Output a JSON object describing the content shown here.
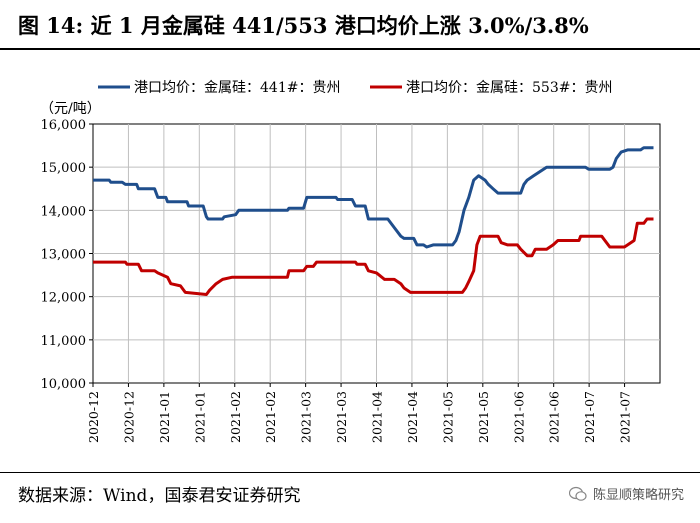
{
  "title": "图 14: 近 1 月金属硅 441/553 港口均价上涨 3.0%/3.8%",
  "source": "数据来源：Wind，国泰君安证券研究",
  "brand": "陈显顺策略研究",
  "colors": {
    "series1": "#1f4e8c",
    "series2": "#c00000"
  },
  "chart_data": {
    "type": "line",
    "unit_label": "（元/吨）",
    "ylim": [
      10000,
      16000
    ],
    "yticks": [
      "10,000",
      "11,000",
      "12,000",
      "13,000",
      "14,000",
      "15,000",
      "16,000"
    ],
    "xticks": [
      "2020-12",
      "2020-12",
      "2021-01",
      "2021-01",
      "2021-02",
      "2021-02",
      "2021-03",
      "2021-03",
      "2021-04",
      "2021-04",
      "2021-05",
      "2021-05",
      "2021-06",
      "2021-06",
      "2021-07",
      "2021-07"
    ],
    "x_range": [
      0,
      17.5
    ],
    "legend_position": "top",
    "grid": true,
    "series": [
      {
        "name": "港口均价：金属硅：441#：贵州",
        "color": "#1f4e8c",
        "points": [
          [
            0,
            14700
          ],
          [
            0.5,
            14700
          ],
          [
            0.55,
            14650
          ],
          [
            0.9,
            14650
          ],
          [
            1.0,
            14600
          ],
          [
            1.35,
            14600
          ],
          [
            1.4,
            14500
          ],
          [
            1.9,
            14500
          ],
          [
            2.0,
            14300
          ],
          [
            2.25,
            14300
          ],
          [
            2.3,
            14200
          ],
          [
            2.9,
            14200
          ],
          [
            2.95,
            14100
          ],
          [
            3.4,
            14100
          ],
          [
            3.5,
            13850
          ],
          [
            3.55,
            13800
          ],
          [
            4.0,
            13800
          ],
          [
            4.05,
            13850
          ],
          [
            4.4,
            13900
          ],
          [
            4.5,
            14000
          ],
          [
            6.0,
            14000
          ],
          [
            6.05,
            14050
          ],
          [
            6.5,
            14050
          ],
          [
            6.6,
            14300
          ],
          [
            7.5,
            14300
          ],
          [
            7.55,
            14250
          ],
          [
            8.0,
            14250
          ],
          [
            8.1,
            14100
          ],
          [
            8.4,
            14100
          ],
          [
            8.5,
            13800
          ],
          [
            9.1,
            13800
          ],
          [
            9.3,
            13600
          ],
          [
            9.5,
            13400
          ],
          [
            9.6,
            13350
          ],
          [
            9.9,
            13350
          ],
          [
            10.0,
            13200
          ],
          [
            10.2,
            13200
          ],
          [
            10.3,
            13150
          ],
          [
            10.5,
            13200
          ],
          [
            11.1,
            13200
          ],
          [
            11.2,
            13300
          ],
          [
            11.3,
            13500
          ],
          [
            11.45,
            14000
          ],
          [
            11.6,
            14300
          ],
          [
            11.75,
            14700
          ],
          [
            11.9,
            14800
          ],
          [
            12.1,
            14700
          ],
          [
            12.2,
            14600
          ],
          [
            12.35,
            14500
          ],
          [
            12.5,
            14400
          ],
          [
            13.2,
            14400
          ],
          [
            13.3,
            14600
          ],
          [
            13.4,
            14700
          ],
          [
            13.6,
            14800
          ],
          [
            13.8,
            14900
          ],
          [
            14.0,
            15000
          ],
          [
            15.2,
            15000
          ],
          [
            15.3,
            14950
          ],
          [
            15.95,
            14950
          ],
          [
            16.05,
            15000
          ],
          [
            16.15,
            15200
          ],
          [
            16.3,
            15350
          ],
          [
            16.5,
            15400
          ],
          [
            16.9,
            15400
          ],
          [
            17.0,
            15450
          ],
          [
            17.3,
            15450
          ]
        ]
      },
      {
        "name": "港口均价：金属硅：553#：贵州",
        "color": "#c00000",
        "points": [
          [
            0,
            12800
          ],
          [
            1.0,
            12800
          ],
          [
            1.05,
            12750
          ],
          [
            1.4,
            12750
          ],
          [
            1.5,
            12600
          ],
          [
            1.9,
            12600
          ],
          [
            2.0,
            12550
          ],
          [
            2.3,
            12450
          ],
          [
            2.4,
            12300
          ],
          [
            2.7,
            12250
          ],
          [
            2.85,
            12100
          ],
          [
            3.5,
            12050
          ],
          [
            3.6,
            12150
          ],
          [
            3.8,
            12300
          ],
          [
            4.0,
            12400
          ],
          [
            4.3,
            12450
          ],
          [
            6.0,
            12450
          ],
          [
            6.05,
            12600
          ],
          [
            6.5,
            12600
          ],
          [
            6.6,
            12700
          ],
          [
            6.8,
            12700
          ],
          [
            6.9,
            12800
          ],
          [
            8.1,
            12800
          ],
          [
            8.15,
            12750
          ],
          [
            8.4,
            12750
          ],
          [
            8.5,
            12600
          ],
          [
            8.75,
            12550
          ],
          [
            9.0,
            12400
          ],
          [
            9.3,
            12400
          ],
          [
            9.5,
            12300
          ],
          [
            9.6,
            12200
          ],
          [
            9.8,
            12100
          ],
          [
            11.4,
            12100
          ],
          [
            11.5,
            12200
          ],
          [
            11.6,
            12350
          ],
          [
            11.75,
            12600
          ],
          [
            11.85,
            13200
          ],
          [
            11.95,
            13400
          ],
          [
            12.5,
            13400
          ],
          [
            12.6,
            13250
          ],
          [
            12.8,
            13200
          ],
          [
            13.1,
            13200
          ],
          [
            13.2,
            13100
          ],
          [
            13.4,
            12950
          ],
          [
            13.55,
            12950
          ],
          [
            13.65,
            13100
          ],
          [
            14.0,
            13100
          ],
          [
            14.2,
            13200
          ],
          [
            14.35,
            13300
          ],
          [
            15.0,
            13300
          ],
          [
            15.05,
            13400
          ],
          [
            15.7,
            13400
          ],
          [
            15.8,
            13300
          ],
          [
            15.95,
            13150
          ],
          [
            16.4,
            13150
          ],
          [
            16.5,
            13200
          ],
          [
            16.7,
            13300
          ],
          [
            16.8,
            13700
          ],
          [
            17.0,
            13700
          ],
          [
            17.1,
            13800
          ],
          [
            17.3,
            13800
          ]
        ]
      }
    ]
  }
}
